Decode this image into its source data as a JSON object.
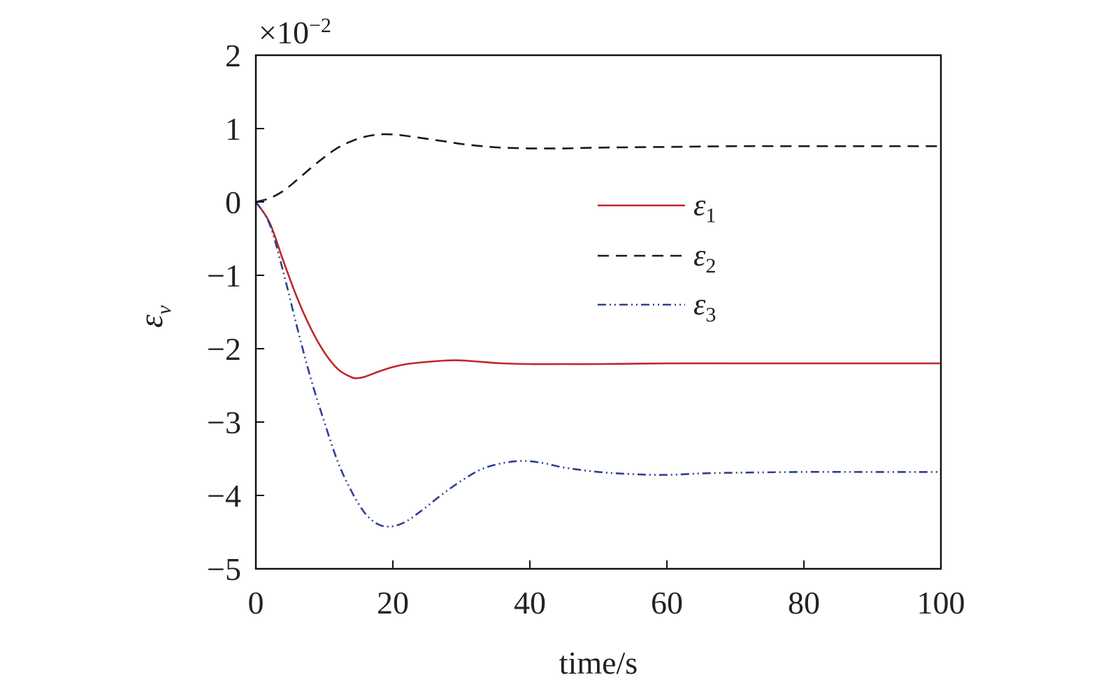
{
  "chart_data": {
    "type": "line",
    "title": "",
    "xlabel": "time/s",
    "ylabel": "ε_v",
    "ylabel_parts": {
      "base": "ε",
      "sub": "v"
    },
    "y_multiplier": {
      "prefix": "×10",
      "exponent": "−2"
    },
    "xlim": [
      0,
      100
    ],
    "ylim": [
      -5,
      2
    ],
    "x_ticks": [
      0,
      20,
      40,
      60,
      80,
      100
    ],
    "x_tick_labels": [
      "0",
      "20",
      "40",
      "60",
      "80",
      "100"
    ],
    "y_ticks": [
      2,
      1,
      0,
      -1,
      -2,
      -3,
      -4,
      -5
    ],
    "y_tick_labels": [
      "2",
      "1",
      "0",
      "−1",
      "−2",
      "−3",
      "−4",
      "−5"
    ],
    "grid": false,
    "legend_position": "upper-right",
    "series": [
      {
        "name": "ε1",
        "name_base": "ε",
        "name_sub": "1",
        "color": "#c0272d",
        "style": "solid",
        "x": [
          0,
          2,
          4,
          6,
          8,
          10,
          12,
          14,
          15,
          16,
          18,
          20,
          22,
          25,
          28,
          30,
          33,
          36,
          40,
          45,
          50,
          60,
          70,
          80,
          90,
          100
        ],
        "y": [
          0,
          -0.28,
          -0.8,
          -1.3,
          -1.72,
          -2.05,
          -2.28,
          -2.39,
          -2.4,
          -2.38,
          -2.31,
          -2.25,
          -2.21,
          -2.18,
          -2.16,
          -2.16,
          -2.18,
          -2.2,
          -2.21,
          -2.21,
          -2.21,
          -2.2,
          -2.2,
          -2.2,
          -2.2,
          -2.2
        ]
      },
      {
        "name": "ε2",
        "name_base": "ε",
        "name_sub": "2",
        "color": "#1a1a1a",
        "style": "dashed",
        "x": [
          0,
          2,
          4,
          6,
          8,
          10,
          12,
          14,
          16,
          18,
          20,
          22,
          25,
          28,
          30,
          33,
          36,
          40,
          45,
          50,
          60,
          70,
          80,
          90,
          100
        ],
        "y": [
          0,
          0.05,
          0.15,
          0.3,
          0.46,
          0.61,
          0.74,
          0.83,
          0.89,
          0.92,
          0.92,
          0.9,
          0.86,
          0.82,
          0.79,
          0.76,
          0.74,
          0.73,
          0.73,
          0.74,
          0.75,
          0.76,
          0.76,
          0.76,
          0.76
        ]
      },
      {
        "name": "ε3",
        "name_base": "ε",
        "name_sub": "3",
        "color": "#2e3f93",
        "style": "dashdotdot",
        "x": [
          0,
          2,
          4,
          6,
          8,
          10,
          12,
          14,
          16,
          18,
          20,
          22,
          24,
          27,
          30,
          33,
          36,
          39,
          42,
          45,
          50,
          55,
          60,
          65,
          70,
          80,
          90,
          100
        ],
        "y": [
          0,
          -0.3,
          -0.95,
          -1.7,
          -2.4,
          -3.0,
          -3.55,
          -3.95,
          -4.25,
          -4.4,
          -4.42,
          -4.35,
          -4.22,
          -4.0,
          -3.8,
          -3.64,
          -3.56,
          -3.53,
          -3.56,
          -3.62,
          -3.68,
          -3.71,
          -3.72,
          -3.7,
          -3.69,
          -3.68,
          -3.68,
          -3.68
        ]
      }
    ]
  }
}
